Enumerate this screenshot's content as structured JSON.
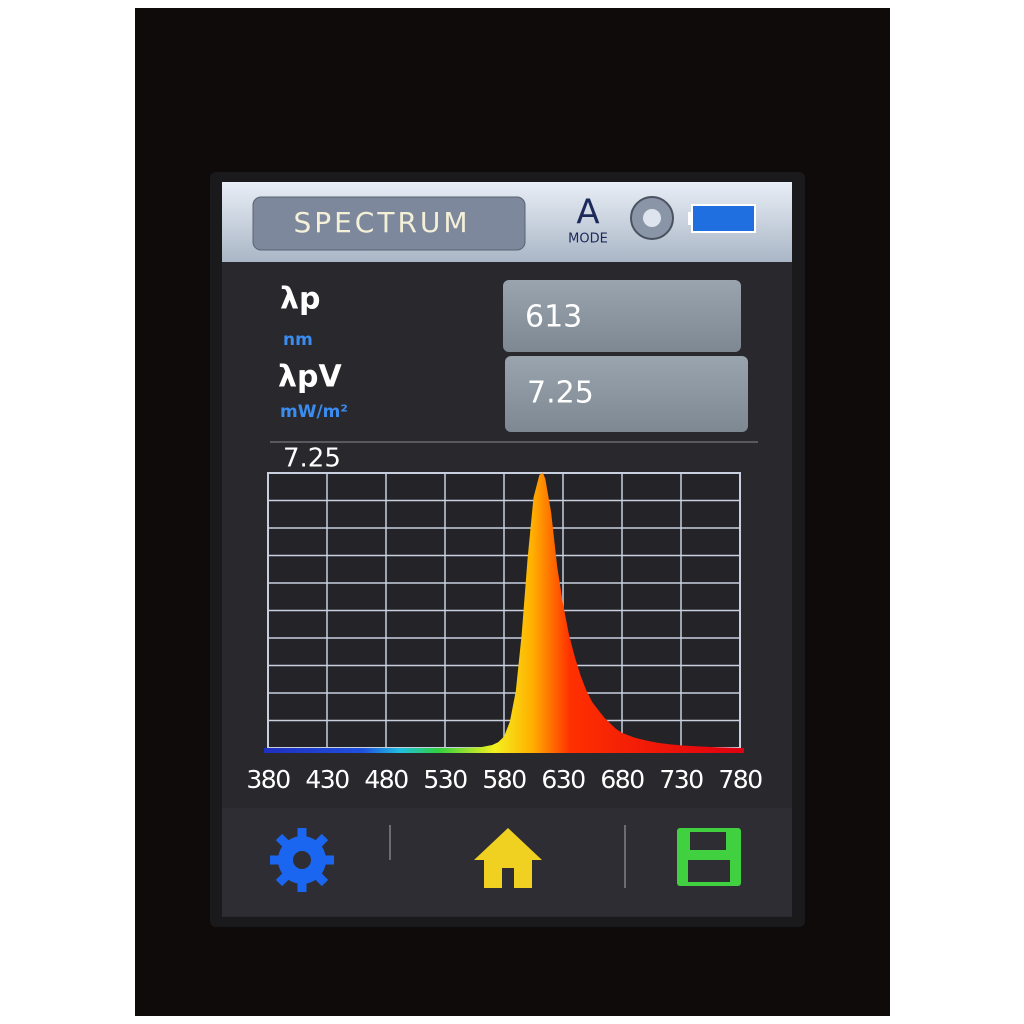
{
  "header": {
    "title": "SPECTRUM",
    "mode_letter": "A",
    "mode_label": "MODE"
  },
  "readings": [
    {
      "label": "λp",
      "unit": "nm",
      "value": "613"
    },
    {
      "label": "λpV",
      "unit": "mW/m²",
      "value": "7.25"
    }
  ],
  "chart_data": {
    "type": "area",
    "x": [
      380,
      400,
      420,
      440,
      460,
      480,
      500,
      520,
      540,
      560,
      570,
      575,
      580,
      585,
      590,
      595,
      600,
      605,
      610,
      613,
      615,
      620,
      625,
      630,
      635,
      640,
      645,
      650,
      655,
      660,
      665,
      670,
      675,
      680,
      690,
      700,
      710,
      720,
      730,
      740,
      760,
      780
    ],
    "values": [
      0,
      0,
      0,
      0,
      0,
      0,
      0,
      0,
      0,
      0.02,
      0.08,
      0.15,
      0.3,
      0.7,
      1.5,
      3.0,
      5.0,
      6.6,
      7.2,
      7.25,
      7.1,
      6.2,
      4.8,
      3.8,
      3.0,
      2.4,
      1.9,
      1.5,
      1.2,
      1.0,
      0.8,
      0.65,
      0.5,
      0.4,
      0.28,
      0.2,
      0.14,
      0.1,
      0.07,
      0.05,
      0.02,
      0
    ],
    "xlim": [
      380,
      780
    ],
    "xticks": [
      380,
      430,
      480,
      530,
      580,
      630,
      680,
      730,
      780
    ],
    "ylim": [
      0,
      7.25
    ],
    "yticks": [
      7.25
    ],
    "grid": true
  }
}
